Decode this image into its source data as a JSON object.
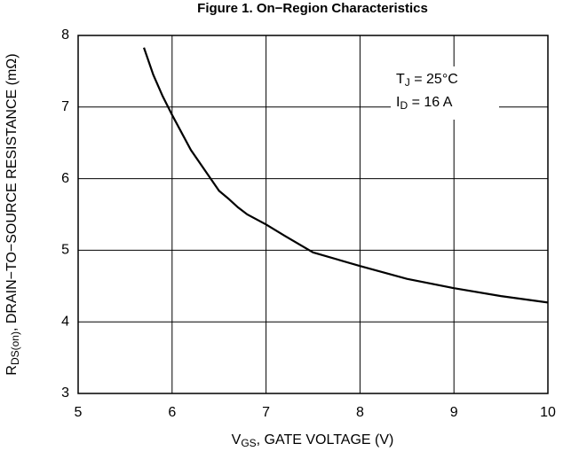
{
  "chart_data": {
    "type": "line",
    "title": "Figure 1. On−Region Characteristics",
    "x_label": {
      "main": "V",
      "sub": "GS",
      "rest": ", GATE VOLTAGE (V)"
    },
    "y_label": {
      "main": "R",
      "sub": "DS(on)",
      "rest": ", DRAIN−TO−SOURCE RESISTANCE (mΩ)"
    },
    "annotations": [
      {
        "main": "T",
        "sub": "J",
        "rest": " = 25°C"
      },
      {
        "main": "I",
        "sub": "D",
        "rest": " = 16 A"
      }
    ],
    "x": [
      5.7,
      5.8,
      5.9,
      6.0,
      6.2,
      6.4,
      6.5,
      6.6,
      6.7,
      6.8,
      7.0,
      7.2,
      7.5,
      8.0,
      8.5,
      9.0,
      9.5,
      10.0
    ],
    "series": [
      {
        "name": "R",
        "color": "#000000",
        "values": [
          7.83,
          7.45,
          7.15,
          6.89,
          6.4,
          6.02,
          5.83,
          5.72,
          5.6,
          5.5,
          5.36,
          5.2,
          4.97,
          4.78,
          4.6,
          4.47,
          4.36,
          4.27
        ]
      }
    ],
    "xlim": [
      5,
      10
    ],
    "xticks": [
      5,
      6,
      7,
      8,
      9,
      10
    ],
    "ylim": [
      3,
      8
    ],
    "yticks": [
      3,
      4,
      5,
      6,
      7,
      8
    ],
    "grid": true
  }
}
